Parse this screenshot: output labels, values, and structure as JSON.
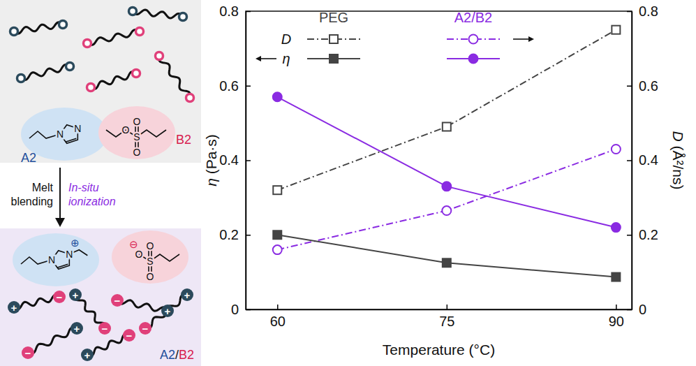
{
  "chart_data": {
    "type": "line",
    "x": [
      60,
      75,
      90
    ],
    "xlim": [
      57.2,
      91.4
    ],
    "xticks": [
      60,
      75,
      90
    ],
    "ylim": [
      0,
      0.8
    ],
    "yticks": [
      0,
      0.2,
      0.4,
      0.6,
      0.8
    ],
    "y2lim": [
      0,
      0.8
    ],
    "y2ticks": [
      0,
      0.2,
      0.4,
      0.6,
      0.8
    ],
    "x_label": "Temperature (°C)",
    "y_label": "η (Pa·s)",
    "y2_label": "D (Å²/ns)",
    "legend": "top",
    "series": [
      {
        "name": "PEG",
        "quantity": "D",
        "axis": "y2",
        "color": "#444444",
        "marker": "square-open",
        "line_style": "dashdot",
        "values": [
          0.32,
          0.49,
          0.75
        ]
      },
      {
        "name": "A2/B2",
        "quantity": "D",
        "axis": "y2",
        "color": "#8a2be2",
        "marker": "circle-open",
        "line_style": "dashdot",
        "values": [
          0.16,
          0.265,
          0.43
        ]
      },
      {
        "name": "PEG",
        "quantity": "η",
        "color": "#444444",
        "marker": "square",
        "line_style": "solid",
        "values": [
          0.2,
          0.125,
          0.087
        ]
      },
      {
        "name": "A2/B2",
        "quantity": "η",
        "color": "#8a2be2",
        "marker": "circle",
        "line_style": "solid",
        "values": [
          0.57,
          0.33,
          0.22
        ]
      }
    ]
  },
  "scheme": {
    "a2_label": "A2",
    "b2_label": "B2",
    "step_label": "Melt blending",
    "step_label_2": "In-situ ionization",
    "product_label": "A2/B2",
    "a2_atoms": [
      "N",
      "N",
      "⊕"
    ],
    "b2_atoms": [
      "O",
      "S",
      "O",
      "O",
      "⊖"
    ],
    "charges": [
      "+",
      "−"
    ]
  }
}
